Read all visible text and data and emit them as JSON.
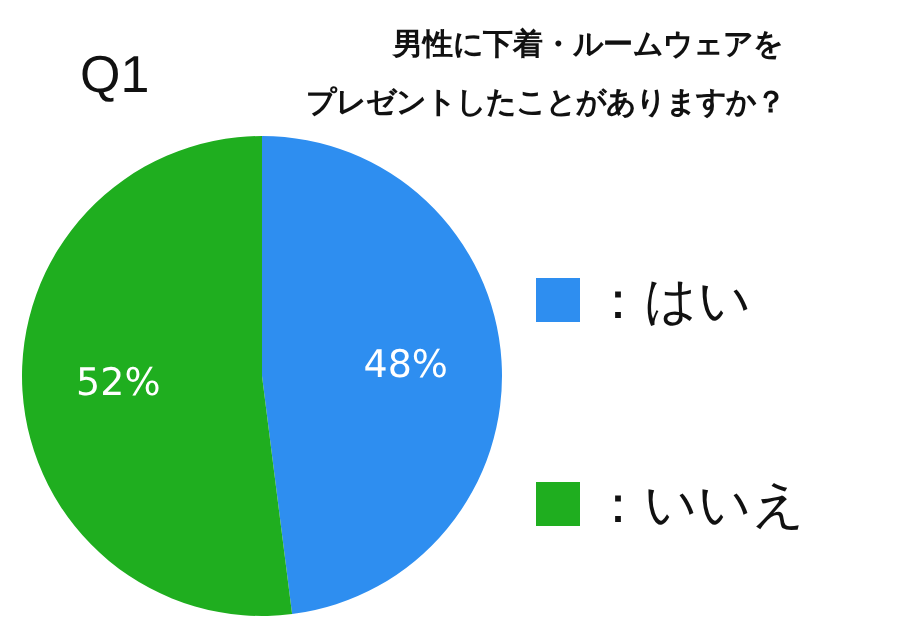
{
  "chart_data": {
    "type": "pie",
    "title": "Q1",
    "subtitle": "男性に下着・ルームウェアをプレゼントしたことがありますか？",
    "categories": [
      "：はい",
      "：いいえ"
    ],
    "values": [
      48,
      52
    ],
    "colors": [
      "#2e8ef0",
      "#1fae1f"
    ],
    "value_labels": [
      "48%",
      "52%"
    ],
    "legend": "right"
  }
}
